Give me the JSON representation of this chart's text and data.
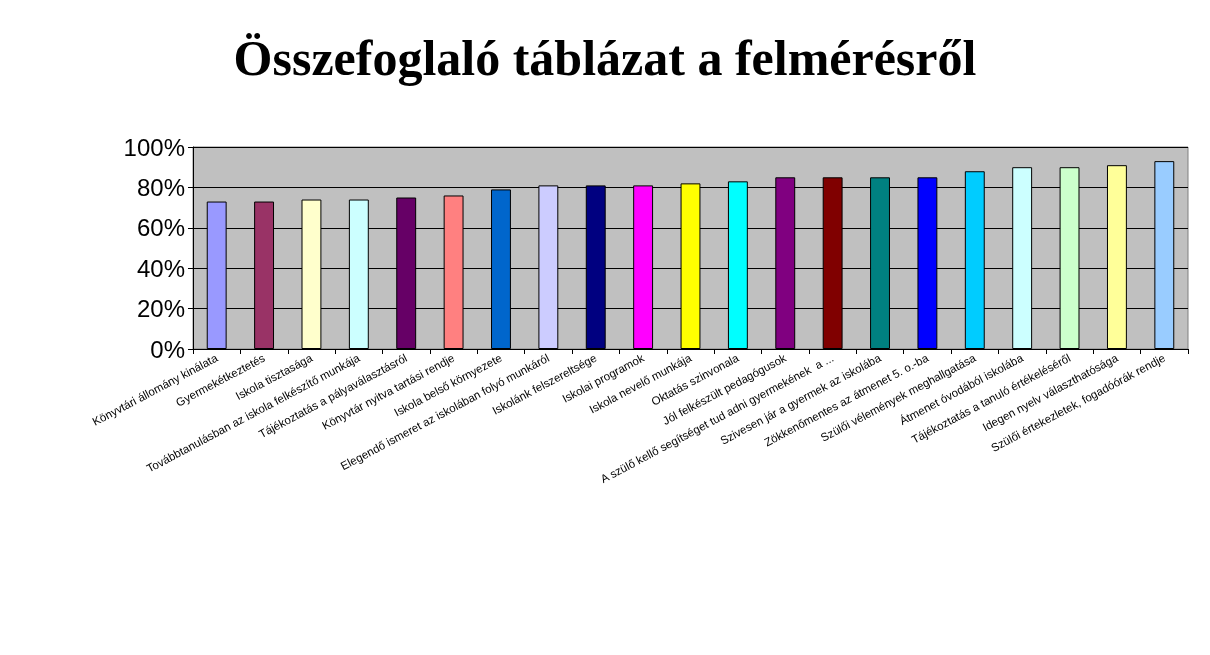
{
  "chart_data": {
    "type": "bar",
    "title": "Összefoglaló táblázat a felmérésről",
    "categories": [
      "Könyvtári állomány kinálata",
      "Gyermekétkeztetés",
      "Iskola tisztasága",
      "Továbbtanulásban az iskola felkészítő munkája",
      "Tájékoztatás a pályaválasztásról",
      "Könyvtár nyitva tartási rendje",
      "Iskola belső környezete",
      "Elegendő ismeret az iskolában folyó munkáról",
      "Iskolánk felszereltsége",
      "Iskolai programok",
      "Iskola nevelő munkája",
      "Oktatás szinvonala",
      "Jól felkészült pedagógusok",
      "A szülő kellő segítséget tud adni gyermekének  a ...",
      "Szivesen jár a gyermek az iskolába",
      "Zökkenőmentes az átmenet 5. o.-ba",
      "Szülői vélemények meghallgatása",
      "Átmenet óvodából iskolába",
      "Tájékoztatás a tanuló értékeléséről",
      "Idegen nyelv választhatósága",
      "Szülői értekezletek, fogadóórák rendje"
    ],
    "values": [
      73,
      73,
      74,
      74,
      75,
      76,
      79,
      81,
      81,
      81,
      82,
      83,
      85,
      85,
      85,
      85,
      88,
      90,
      90,
      91,
      93
    ],
    "colors": [
      "#9999ff",
      "#993366",
      "#ffffcc",
      "#ccffff",
      "#660066",
      "#ff8080",
      "#0066cc",
      "#ccccff",
      "#000080",
      "#ff00ff",
      "#ffff00",
      "#00ffff",
      "#800080",
      "#800000",
      "#008080",
      "#0000ff",
      "#00ccff",
      "#ccffff",
      "#ccffcc",
      "#ffff99",
      "#99ccff"
    ],
    "ylim": [
      0,
      100
    ],
    "yticks": [
      {
        "value": 0,
        "label": "0%"
      },
      {
        "value": 20,
        "label": "20%"
      },
      {
        "value": 40,
        "label": "40%"
      },
      {
        "value": 60,
        "label": "60%"
      },
      {
        "value": 80,
        "label": "80%"
      },
      {
        "value": 100,
        "label": "100%"
      }
    ],
    "grid": "y"
  }
}
